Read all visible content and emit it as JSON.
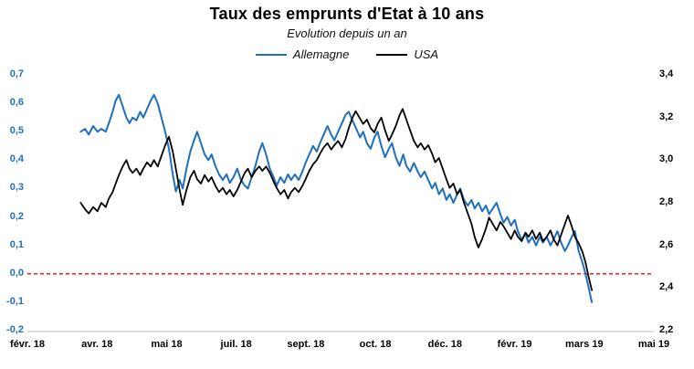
{
  "colors": {
    "germany": "#1f6fbf",
    "usa": "#000000",
    "zero_line": "#ff0000",
    "axis_line": "#bfbfbf",
    "text": "#000000"
  },
  "chart_data": {
    "type": "line",
    "title": "Taux des emprunts d'Etat à 10 ans",
    "subtitle": "Evolution depuis un an",
    "grid": "off",
    "legend": {
      "position": "top",
      "entries": [
        {
          "label": "Allemagne",
          "color": "#1f6fbf"
        },
        {
          "label": "USA",
          "color": "#000000"
        }
      ]
    },
    "x_axis": {
      "tick_labels": [
        "févr. 18",
        "avr. 18",
        "mai 18",
        "juil. 18",
        "sept. 18",
        "oct. 18",
        "déc. 18",
        "févr. 19",
        "mars 19",
        "mai 19"
      ]
    },
    "left_y_axis": {
      "series": "Allemagne",
      "min": -0.2,
      "max": 0.7,
      "step": 0.1,
      "color": "#1f6fbf",
      "tick_labels": [
        "0,7",
        "0,6",
        "0,5",
        "0,4",
        "0,3",
        "0,2",
        "0,1",
        "0,0",
        "-0,1",
        "-0,2"
      ]
    },
    "right_y_axis": {
      "series": "USA",
      "min": 2.2,
      "max": 3.4,
      "step": 0.2,
      "color": "#000000",
      "tick_labels": [
        "3,4",
        "3,2",
        "3,0",
        "2,8",
        "2,6",
        "2,4",
        "2,2"
      ]
    },
    "annotations": [
      {
        "type": "hline",
        "axis": "left",
        "value": 0.0,
        "color": "#ff0000",
        "style": "dashed"
      }
    ],
    "x_unit": "fraction of x-axis span (févr. 18 → mai 19)",
    "series": [
      {
        "name": "Allemagne",
        "axis": "left",
        "color": "#1f6fbf",
        "points": [
          [
            0.085,
            0.5
          ],
          [
            0.092,
            0.51
          ],
          [
            0.098,
            0.49
          ],
          [
            0.105,
            0.52
          ],
          [
            0.112,
            0.5
          ],
          [
            0.118,
            0.51
          ],
          [
            0.125,
            0.5
          ],
          [
            0.13,
            0.53
          ],
          [
            0.136,
            0.57
          ],
          [
            0.141,
            0.61
          ],
          [
            0.146,
            0.63
          ],
          [
            0.152,
            0.59
          ],
          [
            0.158,
            0.55
          ],
          [
            0.163,
            0.53
          ],
          [
            0.168,
            0.55
          ],
          [
            0.174,
            0.54
          ],
          [
            0.18,
            0.57
          ],
          [
            0.185,
            0.55
          ],
          [
            0.191,
            0.58
          ],
          [
            0.197,
            0.61
          ],
          [
            0.202,
            0.63
          ],
          [
            0.208,
            0.6
          ],
          [
            0.214,
            0.55
          ],
          [
            0.22,
            0.5
          ],
          [
            0.226,
            0.44
          ],
          [
            0.232,
            0.35
          ],
          [
            0.237,
            0.29
          ],
          [
            0.243,
            0.33
          ],
          [
            0.248,
            0.3
          ],
          [
            0.254,
            0.37
          ],
          [
            0.26,
            0.43
          ],
          [
            0.266,
            0.47
          ],
          [
            0.271,
            0.5
          ],
          [
            0.277,
            0.46
          ],
          [
            0.283,
            0.42
          ],
          [
            0.289,
            0.4
          ],
          [
            0.294,
            0.42
          ],
          [
            0.3,
            0.38
          ],
          [
            0.306,
            0.35
          ],
          [
            0.312,
            0.33
          ],
          [
            0.318,
            0.35
          ],
          [
            0.323,
            0.32
          ],
          [
            0.329,
            0.34
          ],
          [
            0.335,
            0.37
          ],
          [
            0.341,
            0.33
          ],
          [
            0.347,
            0.31
          ],
          [
            0.352,
            0.3
          ],
          [
            0.358,
            0.34
          ],
          [
            0.364,
            0.38
          ],
          [
            0.37,
            0.43
          ],
          [
            0.375,
            0.46
          ],
          [
            0.381,
            0.42
          ],
          [
            0.387,
            0.37
          ],
          [
            0.393,
            0.34
          ],
          [
            0.398,
            0.31
          ],
          [
            0.404,
            0.34
          ],
          [
            0.41,
            0.32
          ],
          [
            0.416,
            0.35
          ],
          [
            0.421,
            0.33
          ],
          [
            0.427,
            0.35
          ],
          [
            0.433,
            0.33
          ],
          [
            0.439,
            0.36
          ],
          [
            0.444,
            0.39
          ],
          [
            0.45,
            0.42
          ],
          [
            0.456,
            0.45
          ],
          [
            0.462,
            0.43
          ],
          [
            0.467,
            0.46
          ],
          [
            0.473,
            0.49
          ],
          [
            0.479,
            0.52
          ],
          [
            0.485,
            0.49
          ],
          [
            0.49,
            0.47
          ],
          [
            0.496,
            0.5
          ],
          [
            0.502,
            0.53
          ],
          [
            0.508,
            0.56
          ],
          [
            0.513,
            0.57
          ],
          [
            0.519,
            0.54
          ],
          [
            0.525,
            0.51
          ],
          [
            0.531,
            0.48
          ],
          [
            0.536,
            0.5
          ],
          [
            0.542,
            0.46
          ],
          [
            0.548,
            0.44
          ],
          [
            0.554,
            0.48
          ],
          [
            0.559,
            0.5
          ],
          [
            0.565,
            0.45
          ],
          [
            0.571,
            0.41
          ],
          [
            0.577,
            0.44
          ],
          [
            0.582,
            0.46
          ],
          [
            0.588,
            0.41
          ],
          [
            0.594,
            0.38
          ],
          [
            0.6,
            0.42
          ],
          [
            0.605,
            0.38
          ],
          [
            0.611,
            0.36
          ],
          [
            0.617,
            0.39
          ],
          [
            0.623,
            0.36
          ],
          [
            0.628,
            0.34
          ],
          [
            0.634,
            0.36
          ],
          [
            0.64,
            0.33
          ],
          [
            0.646,
            0.3
          ],
          [
            0.651,
            0.32
          ],
          [
            0.657,
            0.28
          ],
          [
            0.663,
            0.3
          ],
          [
            0.669,
            0.26
          ],
          [
            0.674,
            0.28
          ],
          [
            0.68,
            0.25
          ],
          [
            0.686,
            0.28
          ],
          [
            0.691,
            0.3
          ],
          [
            0.697,
            0.26
          ],
          [
            0.703,
            0.24
          ],
          [
            0.709,
            0.26
          ],
          [
            0.714,
            0.23
          ],
          [
            0.72,
            0.25
          ],
          [
            0.726,
            0.22
          ],
          [
            0.732,
            0.24
          ],
          [
            0.737,
            0.21
          ],
          [
            0.743,
            0.23
          ],
          [
            0.749,
            0.25
          ],
          [
            0.755,
            0.21
          ],
          [
            0.76,
            0.18
          ],
          [
            0.766,
            0.2
          ],
          [
            0.772,
            0.17
          ],
          [
            0.778,
            0.19
          ],
          [
            0.783,
            0.15
          ],
          [
            0.789,
            0.12
          ],
          [
            0.795,
            0.14
          ],
          [
            0.8,
            0.11
          ],
          [
            0.806,
            0.13
          ],
          [
            0.812,
            0.1
          ],
          [
            0.818,
            0.13
          ],
          [
            0.823,
            0.11
          ],
          [
            0.829,
            0.13
          ],
          [
            0.835,
            0.1
          ],
          [
            0.84,
            0.12
          ],
          [
            0.846,
            0.15
          ],
          [
            0.852,
            0.11
          ],
          [
            0.858,
            0.08
          ],
          [
            0.863,
            0.1
          ],
          [
            0.869,
            0.13
          ],
          [
            0.874,
            0.15
          ],
          [
            0.88,
            0.08
          ],
          [
            0.886,
            0.04
          ],
          [
            0.891,
            0.0
          ],
          [
            0.896,
            -0.05
          ],
          [
            0.901,
            -0.1
          ]
        ]
      },
      {
        "name": "USA",
        "axis": "right",
        "color": "#000000",
        "points": [
          [
            0.085,
            2.8
          ],
          [
            0.092,
            2.77
          ],
          [
            0.098,
            2.75
          ],
          [
            0.105,
            2.78
          ],
          [
            0.112,
            2.76
          ],
          [
            0.118,
            2.8
          ],
          [
            0.125,
            2.78
          ],
          [
            0.13,
            2.82
          ],
          [
            0.136,
            2.85
          ],
          [
            0.141,
            2.89
          ],
          [
            0.146,
            2.93
          ],
          [
            0.152,
            2.97
          ],
          [
            0.158,
            3.0
          ],
          [
            0.163,
            2.96
          ],
          [
            0.168,
            2.94
          ],
          [
            0.174,
            2.96
          ],
          [
            0.18,
            2.93
          ],
          [
            0.185,
            2.96
          ],
          [
            0.191,
            2.99
          ],
          [
            0.197,
            2.97
          ],
          [
            0.202,
            3.0
          ],
          [
            0.208,
            2.97
          ],
          [
            0.214,
            3.02
          ],
          [
            0.22,
            3.07
          ],
          [
            0.226,
            3.11
          ],
          [
            0.232,
            3.04
          ],
          [
            0.237,
            2.96
          ],
          [
            0.243,
            2.86
          ],
          [
            0.248,
            2.79
          ],
          [
            0.254,
            2.86
          ],
          [
            0.26,
            2.92
          ],
          [
            0.266,
            2.95
          ],
          [
            0.271,
            2.91
          ],
          [
            0.277,
            2.89
          ],
          [
            0.283,
            2.93
          ],
          [
            0.289,
            2.9
          ],
          [
            0.294,
            2.92
          ],
          [
            0.3,
            2.88
          ],
          [
            0.306,
            2.85
          ],
          [
            0.312,
            2.87
          ],
          [
            0.318,
            2.84
          ],
          [
            0.323,
            2.86
          ],
          [
            0.329,
            2.83
          ],
          [
            0.335,
            2.86
          ],
          [
            0.341,
            2.9
          ],
          [
            0.347,
            2.94
          ],
          [
            0.352,
            2.96
          ],
          [
            0.358,
            2.92
          ],
          [
            0.364,
            2.95
          ],
          [
            0.37,
            2.97
          ],
          [
            0.375,
            2.95
          ],
          [
            0.381,
            2.97
          ],
          [
            0.387,
            2.94
          ],
          [
            0.393,
            2.9
          ],
          [
            0.398,
            2.87
          ],
          [
            0.404,
            2.84
          ],
          [
            0.41,
            2.86
          ],
          [
            0.416,
            2.82
          ],
          [
            0.421,
            2.85
          ],
          [
            0.427,
            2.87
          ],
          [
            0.433,
            2.85
          ],
          [
            0.439,
            2.88
          ],
          [
            0.444,
            2.91
          ],
          [
            0.45,
            2.95
          ],
          [
            0.456,
            2.98
          ],
          [
            0.462,
            3.0
          ],
          [
            0.467,
            3.03
          ],
          [
            0.473,
            3.06
          ],
          [
            0.479,
            3.08
          ],
          [
            0.485,
            3.05
          ],
          [
            0.49,
            3.07
          ],
          [
            0.496,
            3.09
          ],
          [
            0.502,
            3.06
          ],
          [
            0.508,
            3.1
          ],
          [
            0.513,
            3.15
          ],
          [
            0.519,
            3.2
          ],
          [
            0.524,
            3.23
          ],
          [
            0.53,
            3.2
          ],
          [
            0.536,
            3.17
          ],
          [
            0.542,
            3.19
          ],
          [
            0.548,
            3.15
          ],
          [
            0.554,
            3.13
          ],
          [
            0.559,
            3.17
          ],
          [
            0.565,
            3.2
          ],
          [
            0.571,
            3.14
          ],
          [
            0.577,
            3.09
          ],
          [
            0.582,
            3.12
          ],
          [
            0.588,
            3.16
          ],
          [
            0.594,
            3.21
          ],
          [
            0.599,
            3.24
          ],
          [
            0.605,
            3.19
          ],
          [
            0.611,
            3.14
          ],
          [
            0.617,
            3.09
          ],
          [
            0.623,
            3.06
          ],
          [
            0.628,
            3.08
          ],
          [
            0.634,
            3.05
          ],
          [
            0.64,
            3.07
          ],
          [
            0.646,
            3.03
          ],
          [
            0.651,
            2.99
          ],
          [
            0.657,
            3.01
          ],
          [
            0.663,
            2.96
          ],
          [
            0.669,
            2.91
          ],
          [
            0.674,
            2.87
          ],
          [
            0.68,
            2.89
          ],
          [
            0.686,
            2.84
          ],
          [
            0.691,
            2.86
          ],
          [
            0.697,
            2.8
          ],
          [
            0.703,
            2.75
          ],
          [
            0.709,
            2.7
          ],
          [
            0.714,
            2.64
          ],
          [
            0.72,
            2.59
          ],
          [
            0.726,
            2.63
          ],
          [
            0.732,
            2.68
          ],
          [
            0.737,
            2.73
          ],
          [
            0.743,
            2.7
          ],
          [
            0.749,
            2.67
          ],
          [
            0.755,
            2.71
          ],
          [
            0.76,
            2.69
          ],
          [
            0.766,
            2.66
          ],
          [
            0.772,
            2.63
          ],
          [
            0.778,
            2.67
          ],
          [
            0.783,
            2.64
          ],
          [
            0.789,
            2.62
          ],
          [
            0.795,
            2.66
          ],
          [
            0.8,
            2.64
          ],
          [
            0.806,
            2.67
          ],
          [
            0.812,
            2.63
          ],
          [
            0.818,
            2.66
          ],
          [
            0.823,
            2.62
          ],
          [
            0.829,
            2.64
          ],
          [
            0.835,
            2.67
          ],
          [
            0.84,
            2.63
          ],
          [
            0.846,
            2.6
          ],
          [
            0.852,
            2.65
          ],
          [
            0.858,
            2.7
          ],
          [
            0.863,
            2.74
          ],
          [
            0.869,
            2.69
          ],
          [
            0.874,
            2.64
          ],
          [
            0.88,
            2.61
          ],
          [
            0.886,
            2.57
          ],
          [
            0.891,
            2.52
          ],
          [
            0.896,
            2.45
          ],
          [
            0.901,
            2.39
          ]
        ]
      }
    ]
  }
}
